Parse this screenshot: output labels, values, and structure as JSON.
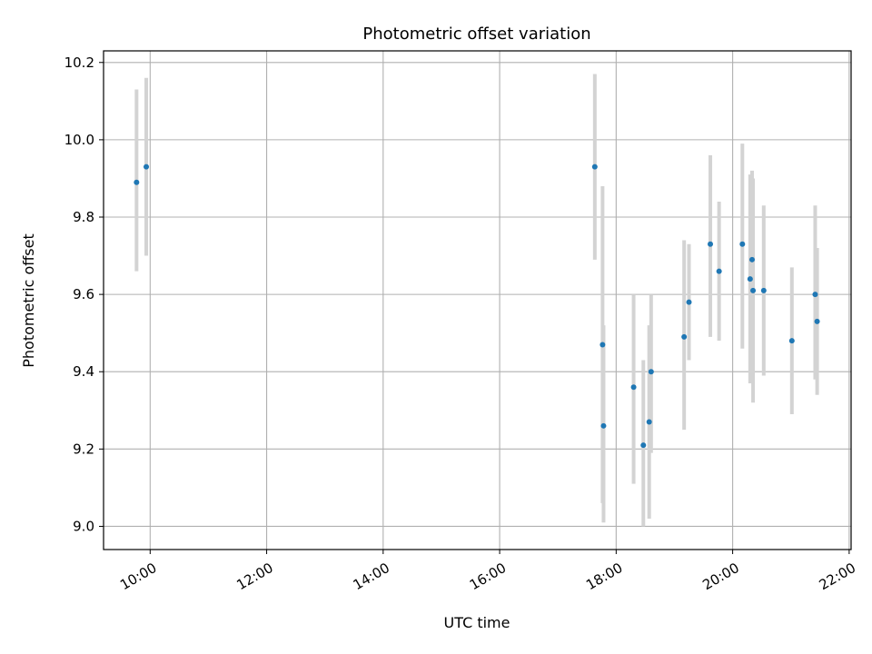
{
  "chart_data": {
    "type": "scatter",
    "title": "Photometric offset variation",
    "xlabel": "UTC time",
    "ylabel": "Photometric offset",
    "x_unit": "hours",
    "xlim": [
      "09:12",
      "22:02"
    ],
    "ylim": [
      8.94,
      10.23
    ],
    "x_ticks": [
      "10:00",
      "12:00",
      "14:00",
      "16:00",
      "18:00",
      "20:00",
      "22:00"
    ],
    "y_ticks": [
      "9.0",
      "9.2",
      "9.4",
      "9.6",
      "9.8",
      "10.0",
      "10.2"
    ],
    "grid": true,
    "marker_color": "#1f77b4",
    "errorbar_color": "#d3d3d3",
    "points": [
      {
        "x": "09:46",
        "y": 9.89,
        "ylo": 9.66,
        "yhi": 10.13
      },
      {
        "x": "09:56",
        "y": 9.93,
        "ylo": 9.7,
        "yhi": 10.16
      },
      {
        "x": "17:38",
        "y": 9.93,
        "ylo": 9.69,
        "yhi": 10.17
      },
      {
        "x": "17:46",
        "y": 9.47,
        "ylo": 9.06,
        "yhi": 9.88
      },
      {
        "x": "17:47",
        "y": 9.26,
        "ylo": 9.01,
        "yhi": 9.52
      },
      {
        "x": "18:18",
        "y": 9.36,
        "ylo": 9.11,
        "yhi": 9.6
      },
      {
        "x": "18:28",
        "y": 9.21,
        "ylo": 9.0,
        "yhi": 9.43
      },
      {
        "x": "18:34",
        "y": 9.27,
        "ylo": 9.02,
        "yhi": 9.52
      },
      {
        "x": "18:36",
        "y": 9.4,
        "ylo": 9.19,
        "yhi": 9.6
      },
      {
        "x": "19:10",
        "y": 9.49,
        "ylo": 9.25,
        "yhi": 9.74
      },
      {
        "x": "19:15",
        "y": 9.58,
        "ylo": 9.43,
        "yhi": 9.73
      },
      {
        "x": "19:37",
        "y": 9.73,
        "ylo": 9.49,
        "yhi": 9.96
      },
      {
        "x": "19:46",
        "y": 9.66,
        "ylo": 9.48,
        "yhi": 9.84
      },
      {
        "x": "20:10",
        "y": 9.73,
        "ylo": 9.46,
        "yhi": 9.99
      },
      {
        "x": "20:18",
        "y": 9.64,
        "ylo": 9.37,
        "yhi": 9.91
      },
      {
        "x": "20:20",
        "y": 9.69,
        "ylo": 9.46,
        "yhi": 9.92
      },
      {
        "x": "20:21",
        "y": 9.61,
        "ylo": 9.32,
        "yhi": 9.9
      },
      {
        "x": "20:32",
        "y": 9.61,
        "ylo": 9.39,
        "yhi": 9.83
      },
      {
        "x": "21:01",
        "y": 9.48,
        "ylo": 9.29,
        "yhi": 9.67
      },
      {
        "x": "21:25",
        "y": 9.6,
        "ylo": 9.38,
        "yhi": 9.83
      },
      {
        "x": "21:27",
        "y": 9.53,
        "ylo": 9.34,
        "yhi": 9.72
      }
    ]
  }
}
